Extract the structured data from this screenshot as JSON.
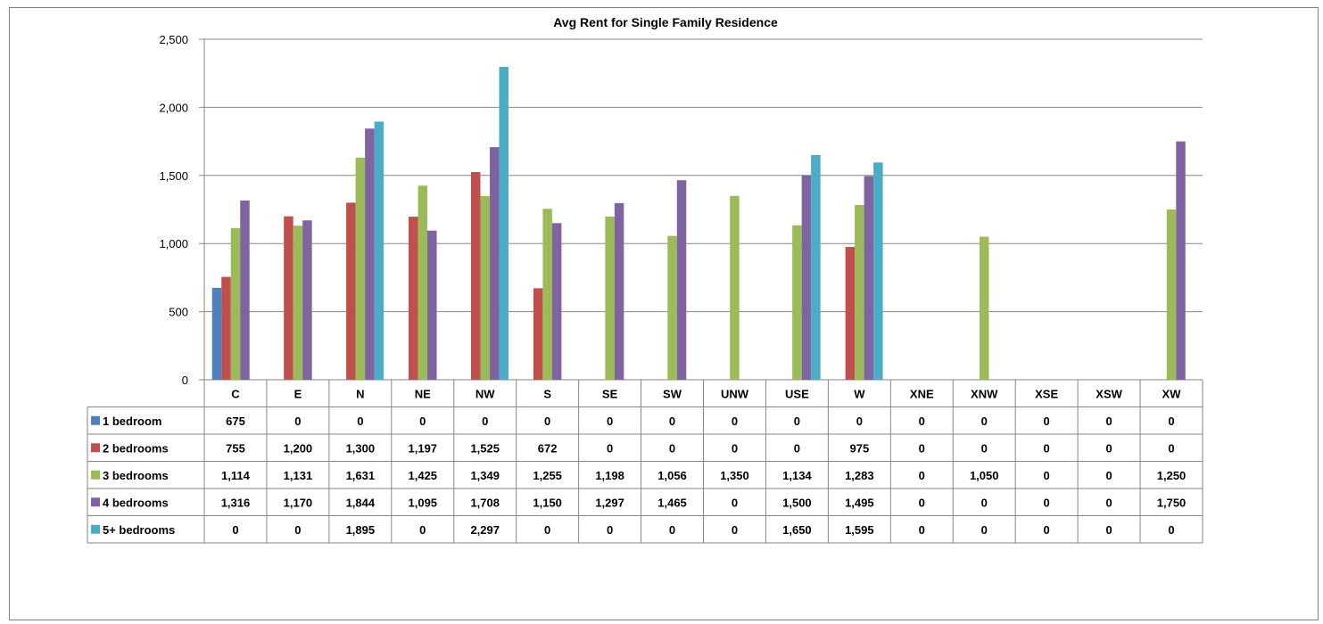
{
  "chart_data": {
    "type": "bar",
    "title": "Avg Rent for Single Family Residence",
    "categories": [
      "C",
      "E",
      "N",
      "NE",
      "NW",
      "S",
      "SE",
      "SW",
      "UNW",
      "USE",
      "W",
      "XNE",
      "XNW",
      "XSE",
      "XSW",
      "XW"
    ],
    "ylim": [
      0,
      2500
    ],
    "yticks": [
      0,
      500,
      1000,
      1500,
      2000,
      2500
    ],
    "ytick_labels": [
      "0",
      "500",
      "1,000",
      "1,500",
      "2,000",
      "2,500"
    ],
    "grid": true,
    "legend": "data-table",
    "series": [
      {
        "name": "1 bedroom",
        "color": "#4f81bd",
        "values": [
          675,
          0,
          0,
          0,
          0,
          0,
          0,
          0,
          0,
          0,
          0,
          0,
          0,
          0,
          0,
          0
        ],
        "labels": [
          "675",
          "0",
          "0",
          "0",
          "0",
          "0",
          "0",
          "0",
          "0",
          "0",
          "0",
          "0",
          "0",
          "0",
          "0",
          "0"
        ]
      },
      {
        "name": "2 bedrooms",
        "color": "#c0504d",
        "values": [
          755,
          1200,
          1300,
          1197,
          1525,
          672,
          0,
          0,
          0,
          0,
          975,
          0,
          0,
          0,
          0,
          0
        ],
        "labels": [
          "755",
          "1,200",
          "1,300",
          "1,197",
          "1,525",
          "672",
          "0",
          "0",
          "0",
          "0",
          "975",
          "0",
          "0",
          "0",
          "0",
          "0"
        ]
      },
      {
        "name": "3 bedrooms",
        "color": "#9bbb59",
        "values": [
          1114,
          1131,
          1631,
          1425,
          1349,
          1255,
          1198,
          1056,
          1350,
          1134,
          1283,
          0,
          1050,
          0,
          0,
          1250
        ],
        "labels": [
          "1,114",
          "1,131",
          "1,631",
          "1,425",
          "1,349",
          "1,255",
          "1,198",
          "1,056",
          "1,350",
          "1,134",
          "1,283",
          "0",
          "1,050",
          "0",
          "0",
          "1,250"
        ]
      },
      {
        "name": "4 bedrooms",
        "color": "#8064a2",
        "values": [
          1316,
          1170,
          1844,
          1095,
          1708,
          1150,
          1297,
          1465,
          0,
          1500,
          1495,
          0,
          0,
          0,
          0,
          1750
        ],
        "labels": [
          "1,316",
          "1,170",
          "1,844",
          "1,095",
          "1,708",
          "1,150",
          "1,297",
          "1,465",
          "0",
          "1,500",
          "1,495",
          "0",
          "0",
          "0",
          "0",
          "1,750"
        ]
      },
      {
        "name": "5+ bedrooms",
        "color": "#4bacc6",
        "values": [
          0,
          0,
          1895,
          0,
          2297,
          0,
          0,
          0,
          0,
          1650,
          1595,
          0,
          0,
          0,
          0,
          0
        ],
        "labels": [
          "0",
          "0",
          "1,895",
          "0",
          "2,297",
          "0",
          "0",
          "0",
          "0",
          "1,650",
          "1,595",
          "0",
          "0",
          "0",
          "0",
          "0"
        ]
      }
    ]
  }
}
